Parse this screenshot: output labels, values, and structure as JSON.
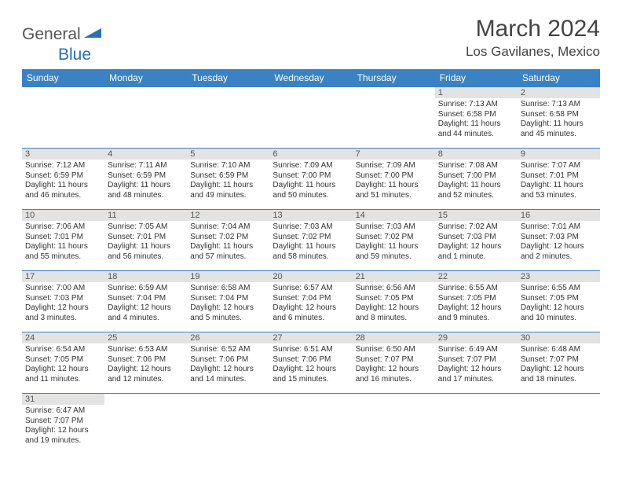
{
  "logo": {
    "part1": "General",
    "part2": "Blue"
  },
  "title": "March 2024",
  "location": "Los Gavilanes, Mexico",
  "colors": {
    "header_bg": "#3a82c4",
    "header_fg": "#ffffff",
    "daynum_bg": "#e3e3e3",
    "row_divider": "#3a82c4",
    "logo_accent": "#2a6fb5"
  },
  "day_labels": [
    "Sunday",
    "Monday",
    "Tuesday",
    "Wednesday",
    "Thursday",
    "Friday",
    "Saturday"
  ],
  "weeks": [
    [
      null,
      null,
      null,
      null,
      null,
      {
        "n": "1",
        "sr": "7:13 AM",
        "ss": "6:58 PM",
        "dl": "11 hours and 44 minutes."
      },
      {
        "n": "2",
        "sr": "7:13 AM",
        "ss": "6:58 PM",
        "dl": "11 hours and 45 minutes."
      }
    ],
    [
      {
        "n": "3",
        "sr": "7:12 AM",
        "ss": "6:59 PM",
        "dl": "11 hours and 46 minutes."
      },
      {
        "n": "4",
        "sr": "7:11 AM",
        "ss": "6:59 PM",
        "dl": "11 hours and 48 minutes."
      },
      {
        "n": "5",
        "sr": "7:10 AM",
        "ss": "6:59 PM",
        "dl": "11 hours and 49 minutes."
      },
      {
        "n": "6",
        "sr": "7:09 AM",
        "ss": "7:00 PM",
        "dl": "11 hours and 50 minutes."
      },
      {
        "n": "7",
        "sr": "7:09 AM",
        "ss": "7:00 PM",
        "dl": "11 hours and 51 minutes."
      },
      {
        "n": "8",
        "sr": "7:08 AM",
        "ss": "7:00 PM",
        "dl": "11 hours and 52 minutes."
      },
      {
        "n": "9",
        "sr": "7:07 AM",
        "ss": "7:01 PM",
        "dl": "11 hours and 53 minutes."
      }
    ],
    [
      {
        "n": "10",
        "sr": "7:06 AM",
        "ss": "7:01 PM",
        "dl": "11 hours and 55 minutes."
      },
      {
        "n": "11",
        "sr": "7:05 AM",
        "ss": "7:01 PM",
        "dl": "11 hours and 56 minutes."
      },
      {
        "n": "12",
        "sr": "7:04 AM",
        "ss": "7:02 PM",
        "dl": "11 hours and 57 minutes."
      },
      {
        "n": "13",
        "sr": "7:03 AM",
        "ss": "7:02 PM",
        "dl": "11 hours and 58 minutes."
      },
      {
        "n": "14",
        "sr": "7:03 AM",
        "ss": "7:02 PM",
        "dl": "11 hours and 59 minutes."
      },
      {
        "n": "15",
        "sr": "7:02 AM",
        "ss": "7:03 PM",
        "dl": "12 hours and 1 minute."
      },
      {
        "n": "16",
        "sr": "7:01 AM",
        "ss": "7:03 PM",
        "dl": "12 hours and 2 minutes."
      }
    ],
    [
      {
        "n": "17",
        "sr": "7:00 AM",
        "ss": "7:03 PM",
        "dl": "12 hours and 3 minutes."
      },
      {
        "n": "18",
        "sr": "6:59 AM",
        "ss": "7:04 PM",
        "dl": "12 hours and 4 minutes."
      },
      {
        "n": "19",
        "sr": "6:58 AM",
        "ss": "7:04 PM",
        "dl": "12 hours and 5 minutes."
      },
      {
        "n": "20",
        "sr": "6:57 AM",
        "ss": "7:04 PM",
        "dl": "12 hours and 6 minutes."
      },
      {
        "n": "21",
        "sr": "6:56 AM",
        "ss": "7:05 PM",
        "dl": "12 hours and 8 minutes."
      },
      {
        "n": "22",
        "sr": "6:55 AM",
        "ss": "7:05 PM",
        "dl": "12 hours and 9 minutes."
      },
      {
        "n": "23",
        "sr": "6:55 AM",
        "ss": "7:05 PM",
        "dl": "12 hours and 10 minutes."
      }
    ],
    [
      {
        "n": "24",
        "sr": "6:54 AM",
        "ss": "7:05 PM",
        "dl": "12 hours and 11 minutes."
      },
      {
        "n": "25",
        "sr": "6:53 AM",
        "ss": "7:06 PM",
        "dl": "12 hours and 12 minutes."
      },
      {
        "n": "26",
        "sr": "6:52 AM",
        "ss": "7:06 PM",
        "dl": "12 hours and 14 minutes."
      },
      {
        "n": "27",
        "sr": "6:51 AM",
        "ss": "7:06 PM",
        "dl": "12 hours and 15 minutes."
      },
      {
        "n": "28",
        "sr": "6:50 AM",
        "ss": "7:07 PM",
        "dl": "12 hours and 16 minutes."
      },
      {
        "n": "29",
        "sr": "6:49 AM",
        "ss": "7:07 PM",
        "dl": "12 hours and 17 minutes."
      },
      {
        "n": "30",
        "sr": "6:48 AM",
        "ss": "7:07 PM",
        "dl": "12 hours and 18 minutes."
      }
    ],
    [
      {
        "n": "31",
        "sr": "6:47 AM",
        "ss": "7:07 PM",
        "dl": "12 hours and 19 minutes."
      },
      null,
      null,
      null,
      null,
      null,
      null
    ]
  ],
  "labels": {
    "sunrise": "Sunrise: ",
    "sunset": "Sunset: ",
    "daylight": "Daylight: "
  }
}
